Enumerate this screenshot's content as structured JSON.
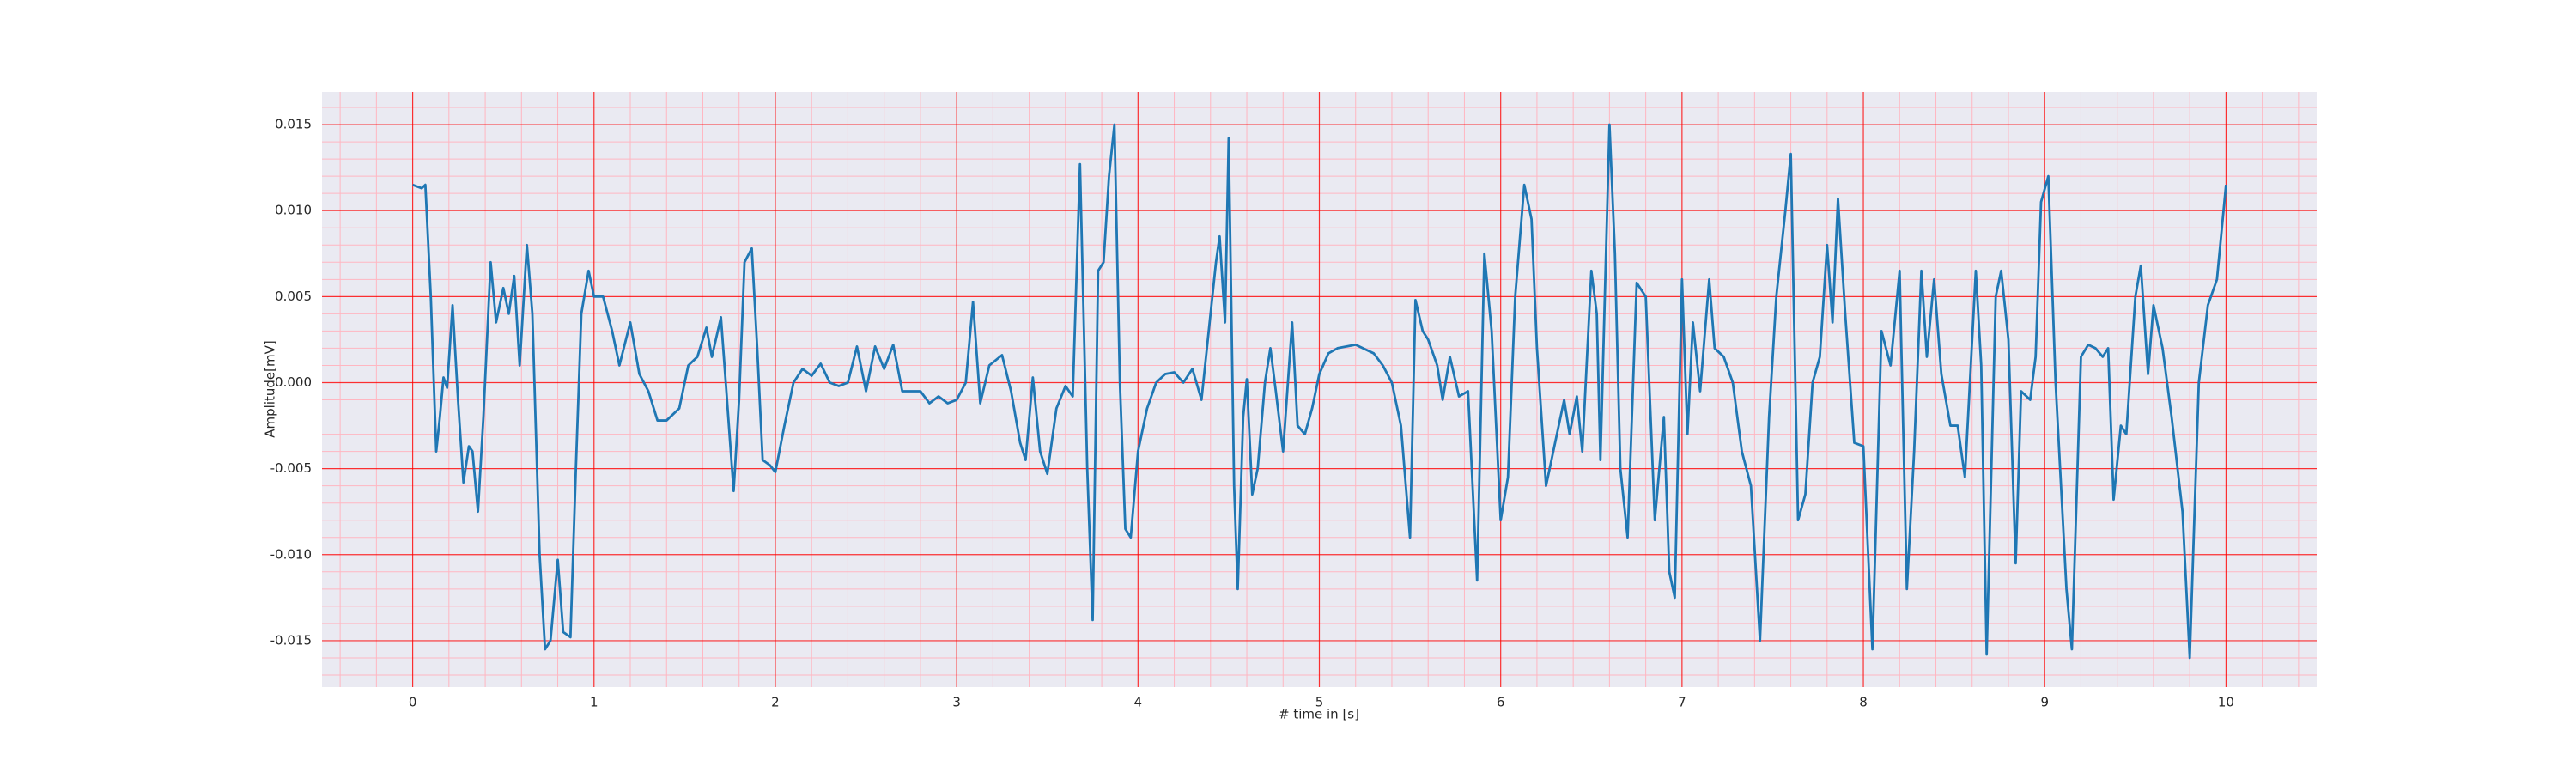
{
  "chart_data": {
    "type": "line",
    "xlabel": "# time in [s]",
    "ylabel": "Amplitude[mV]",
    "color": "#1f77b4",
    "grid": true,
    "minor_grid": true,
    "xlim": [
      -0.5,
      10.5
    ],
    "xticks": [
      0,
      1,
      2,
      3,
      4,
      5,
      6,
      7,
      8,
      9,
      10
    ],
    "ylim": [
      -0.0177,
      0.0169
    ],
    "yticks": [
      -0.015,
      {
        "value": -0.01,
        "label": "-0.010"
      },
      -0.005,
      {
        "value": 0,
        "label": "0.000"
      },
      0.005,
      {
        "value": 0.01,
        "label": "0.010"
      },
      0.015
    ],
    "x": [
      0.0,
      0.05,
      0.07,
      0.1,
      0.13,
      0.15,
      0.17,
      0.19,
      0.22,
      0.25,
      0.28,
      0.31,
      0.33,
      0.36,
      0.39,
      0.43,
      0.46,
      0.5,
      0.53,
      0.56,
      0.59,
      0.63,
      0.66,
      0.7,
      0.73,
      0.76,
      0.8,
      0.83,
      0.87,
      0.9,
      0.93,
      0.97,
      1.0,
      1.05,
      1.1,
      1.14,
      1.2,
      1.25,
      1.3,
      1.35,
      1.4,
      1.47,
      1.52,
      1.57,
      1.62,
      1.65,
      1.7,
      1.73,
      1.77,
      1.8,
      1.83,
      1.87,
      1.9,
      1.93,
      1.97,
      2.0,
      2.05,
      2.1,
      2.15,
      2.2,
      2.25,
      2.3,
      2.35,
      2.4,
      2.45,
      2.5,
      2.55,
      2.6,
      2.65,
      2.7,
      2.75,
      2.8,
      2.85,
      2.9,
      2.95,
      3.0,
      3.05,
      3.09,
      3.13,
      3.18,
      3.25,
      3.3,
      3.35,
      3.38,
      3.42,
      3.46,
      3.5,
      3.55,
      3.6,
      3.64,
      3.68,
      3.72,
      3.75,
      3.78,
      3.81,
      3.84,
      3.87,
      3.9,
      3.93,
      3.96,
      4.0,
      4.05,
      4.1,
      4.15,
      4.2,
      4.25,
      4.3,
      4.35,
      4.4,
      4.43,
      4.45,
      4.48,
      4.5,
      4.53,
      4.55,
      4.58,
      4.6,
      4.63,
      4.66,
      4.7,
      4.73,
      4.76,
      4.8,
      4.85,
      4.88,
      4.92,
      4.96,
      5.0,
      5.05,
      5.1,
      5.2,
      5.3,
      5.35,
      5.4,
      5.45,
      5.5,
      5.53,
      5.57,
      5.6,
      5.65,
      5.68,
      5.72,
      5.77,
      5.82,
      5.87,
      5.91,
      5.95,
      6.0,
      6.04,
      6.08,
      6.13,
      6.17,
      6.2,
      6.25,
      6.3,
      6.35,
      6.38,
      6.42,
      6.45,
      6.5,
      6.53,
      6.55,
      6.6,
      6.63,
      6.66,
      6.7,
      6.75,
      6.8,
      6.85,
      6.9,
      6.93,
      6.96,
      7.0,
      7.03,
      7.06,
      7.1,
      7.15,
      7.18,
      7.23,
      7.28,
      7.33,
      7.38,
      7.43,
      7.48,
      7.52,
      7.57,
      7.6,
      7.64,
      7.68,
      7.72,
      7.76,
      7.8,
      7.83,
      7.86,
      7.9,
      7.95,
      8.0,
      8.05,
      8.1,
      8.15,
      8.2,
      8.24,
      8.28,
      8.32,
      8.35,
      8.39,
      8.43,
      8.48,
      8.52,
      8.56,
      8.62,
      8.65,
      8.68,
      8.73,
      8.76,
      8.8,
      8.84,
      8.87,
      8.92,
      8.95,
      8.98,
      9.02,
      9.06,
      9.12,
      9.15,
      9.2,
      9.24,
      9.28,
      9.32,
      9.35,
      9.38,
      9.42,
      9.45,
      9.5,
      9.53,
      9.57,
      9.6,
      9.65,
      9.7,
      9.76,
      9.8,
      9.85,
      9.9,
      9.95,
      10.0
    ],
    "values": [
      0.0115,
      0.0113,
      0.0115,
      0.005,
      -0.004,
      -0.002,
      0.0003,
      -0.0003,
      0.0045,
      -0.001,
      -0.0058,
      -0.0037,
      -0.004,
      -0.0075,
      -0.002,
      0.007,
      0.0035,
      0.0055,
      0.004,
      0.0062,
      0.001,
      0.008,
      0.004,
      -0.01,
      -0.0155,
      -0.015,
      -0.0103,
      -0.0145,
      -0.0148,
      -0.005,
      0.004,
      0.0065,
      0.005,
      0.005,
      0.003,
      0.001,
      0.0035,
      0.0005,
      -0.0005,
      -0.0022,
      -0.0022,
      -0.0015,
      0.001,
      0.0015,
      0.0032,
      0.0015,
      0.0038,
      -0.0005,
      -0.0063,
      -0.001,
      0.007,
      0.0078,
      0.002,
      -0.0045,
      -0.0048,
      -0.0052,
      -0.0025,
      0.0,
      0.0008,
      0.0004,
      0.0011,
      0.0,
      -0.0002,
      0.0,
      0.0021,
      -0.0005,
      0.0021,
      0.0008,
      0.0022,
      -0.0005,
      -0.0005,
      -0.0005,
      -0.0012,
      -0.0008,
      -0.0012,
      -0.001,
      0.0,
      0.0047,
      -0.0012,
      0.001,
      0.0016,
      -0.0005,
      -0.0035,
      -0.0045,
      0.0003,
      -0.004,
      -0.0053,
      -0.0015,
      -0.0002,
      -0.0008,
      0.0127,
      -0.005,
      -0.0138,
      0.0065,
      0.007,
      0.012,
      0.015,
      0.0,
      -0.0085,
      -0.009,
      -0.004,
      -0.0015,
      0.0,
      0.0005,
      0.0006,
      0.0,
      0.0008,
      -0.001,
      0.004,
      0.007,
      0.0085,
      0.0035,
      0.0142,
      -0.006,
      -0.012,
      -0.002,
      0.0002,
      -0.0065,
      -0.005,
      0.0,
      0.002,
      -0.0005,
      -0.004,
      0.0035,
      -0.0025,
      -0.003,
      -0.0015,
      0.0005,
      0.0017,
      0.002,
      0.0022,
      0.0017,
      0.001,
      0.0,
      -0.0025,
      -0.009,
      0.0048,
      0.003,
      0.0025,
      0.001,
      -0.001,
      0.0015,
      -0.0008,
      -0.0005,
      -0.0115,
      0.0075,
      0.003,
      -0.008,
      -0.0055,
      0.005,
      0.0115,
      0.0095,
      0.002,
      -0.006,
      -0.0035,
      -0.001,
      -0.003,
      -0.0008,
      -0.004,
      0.0065,
      0.004,
      -0.0045,
      0.015,
      0.0075,
      -0.005,
      -0.009,
      0.0058,
      0.005,
      -0.008,
      -0.002,
      -0.011,
      -0.0125,
      0.006,
      -0.003,
      0.0035,
      -0.0005,
      0.006,
      0.002,
      0.0015,
      0.0,
      -0.004,
      -0.006,
      -0.015,
      -0.002,
      0.005,
      0.01,
      0.0133,
      -0.008,
      -0.0065,
      0.0,
      0.0015,
      0.008,
      0.0035,
      0.0107,
      0.004,
      -0.0035,
      -0.0037,
      -0.0155,
      0.003,
      0.001,
      0.0065,
      -0.012,
      -0.004,
      0.0065,
      0.0015,
      0.006,
      0.0005,
      -0.0025,
      -0.0025,
      -0.0055,
      0.0065,
      0.001,
      -0.0158,
      0.005,
      0.0065,
      0.0025,
      -0.0105,
      -0.0005,
      -0.001,
      0.0015,
      0.0105,
      0.012,
      0.0,
      -0.012,
      -0.0155,
      0.0015,
      0.0022,
      0.002,
      0.0015,
      0.002,
      -0.0068,
      -0.0025,
      -0.003,
      0.005,
      0.0068,
      0.0005,
      0.0045,
      0.002,
      -0.002,
      -0.0075,
      -0.016,
      0.0,
      0.0045,
      0.006,
      0.0115
    ]
  }
}
